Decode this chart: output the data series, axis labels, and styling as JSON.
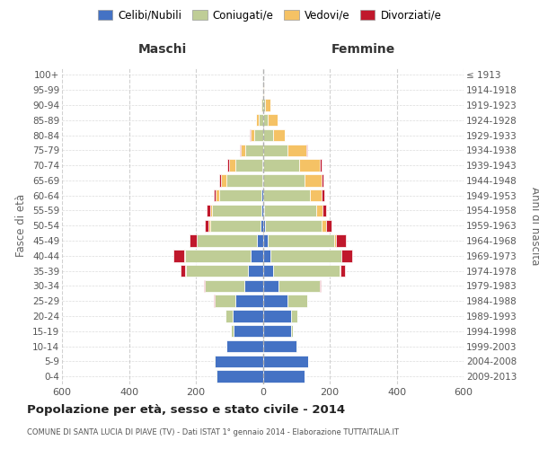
{
  "age_groups": [
    "0-4",
    "5-9",
    "10-14",
    "15-19",
    "20-24",
    "25-29",
    "30-34",
    "35-39",
    "40-44",
    "45-49",
    "50-54",
    "55-59",
    "60-64",
    "65-69",
    "70-74",
    "75-79",
    "80-84",
    "85-89",
    "90-94",
    "95-99",
    "100+"
  ],
  "birth_years": [
    "2009-2013",
    "2004-2008",
    "1999-2003",
    "1994-1998",
    "1989-1993",
    "1984-1988",
    "1979-1983",
    "1974-1978",
    "1969-1973",
    "1964-1968",
    "1959-1963",
    "1954-1958",
    "1949-1953",
    "1944-1948",
    "1939-1943",
    "1934-1938",
    "1929-1933",
    "1924-1928",
    "1919-1923",
    "1914-1918",
    "≤ 1913"
  ],
  "male_celibi": [
    138,
    143,
    108,
    88,
    90,
    82,
    55,
    45,
    35,
    18,
    6,
    4,
    3,
    2,
    1,
    0,
    0,
    0,
    0,
    0,
    0
  ],
  "male_coniugati": [
    2,
    2,
    2,
    6,
    22,
    62,
    118,
    185,
    198,
    178,
    152,
    148,
    128,
    108,
    80,
    52,
    25,
    12,
    5,
    2,
    1
  ],
  "male_vedovi": [
    0,
    0,
    0,
    0,
    0,
    0,
    0,
    1,
    1,
    2,
    4,
    6,
    10,
    16,
    20,
    15,
    12,
    8,
    3,
    0,
    0
  ],
  "male_divorziati": [
    0,
    0,
    0,
    0,
    0,
    1,
    3,
    14,
    32,
    22,
    12,
    9,
    6,
    5,
    4,
    2,
    2,
    0,
    0,
    0,
    0
  ],
  "female_nubili": [
    125,
    135,
    102,
    85,
    85,
    75,
    48,
    32,
    22,
    15,
    8,
    4,
    2,
    2,
    1,
    0,
    0,
    0,
    0,
    0,
    0
  ],
  "female_coniugate": [
    1,
    1,
    2,
    4,
    18,
    58,
    122,
    198,
    212,
    198,
    168,
    155,
    140,
    122,
    108,
    75,
    30,
    15,
    8,
    2,
    1
  ],
  "female_vedove": [
    0,
    0,
    0,
    0,
    0,
    0,
    1,
    2,
    2,
    5,
    12,
    20,
    35,
    52,
    62,
    55,
    35,
    30,
    15,
    2,
    0
  ],
  "female_divorziate": [
    0,
    0,
    0,
    0,
    0,
    1,
    3,
    14,
    30,
    30,
    18,
    10,
    8,
    5,
    4,
    2,
    1,
    0,
    0,
    0,
    0
  ],
  "colors": {
    "celibi": "#4472C4",
    "coniugati": "#BFCD96",
    "vedovi": "#F5C265",
    "divorziati": "#C0182C"
  },
  "legend_labels": [
    "Celibi/Nubili",
    "Coniugati/e",
    "Vedovi/e",
    "Divorziati/e"
  ],
  "title": "Popolazione per età, sesso e stato civile - 2014",
  "subtitle": "COMUNE DI SANTA LUCIA DI PIAVE (TV) - Dati ISTAT 1° gennaio 2014 - Elaborazione TUTTAITALIA.IT",
  "label_maschi": "Maschi",
  "label_femmine": "Femmine",
  "ylabel_left": "Fasce di età",
  "ylabel_right": "Anni di nascita",
  "xlim": 600
}
